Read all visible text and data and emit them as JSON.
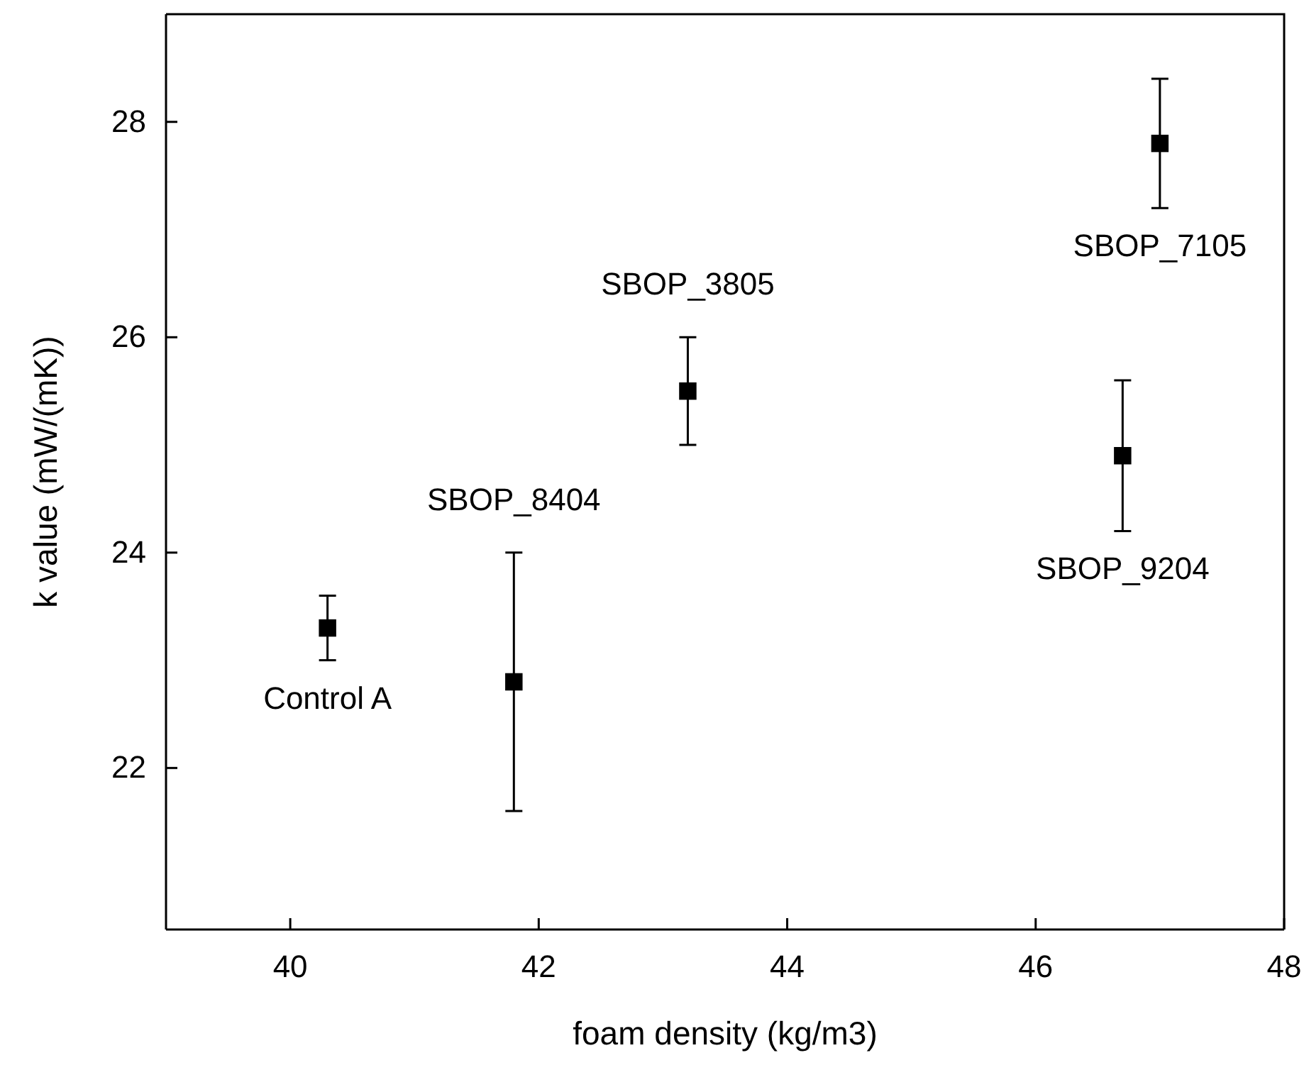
{
  "chart_data": {
    "type": "scatter",
    "xlabel": "foam density (kg/m3)",
    "ylabel": "k value (mW/(mK))",
    "x": [
      40.3,
      41.8,
      43.2,
      46.7,
      47.0
    ],
    "series": [
      {
        "color": "#000000",
        "values": [
          23.3,
          22.8,
          25.5,
          24.9,
          27.8
        ],
        "errors": [
          0.3,
          1.2,
          0.5,
          0.7,
          0.6
        ]
      }
    ],
    "marker": "square",
    "grid": false,
    "xlim": [
      39,
      48
    ],
    "xticks": [
      40,
      42,
      44,
      46,
      48
    ],
    "ylim": [
      20.5,
      29
    ],
    "yticks": [
      22,
      24,
      26,
      28
    ],
    "annotations": [
      {
        "text": "Control A",
        "x": 40.3,
        "y": 23.0
      },
      {
        "text": "SBOP_8404",
        "x": 41.8,
        "y": 24.0
      },
      {
        "text": "SBOP_3805",
        "x": 43.2,
        "y": 26.0
      },
      {
        "text": "SBOP_9204",
        "x": 46.7,
        "y": 24.2
      },
      {
        "text": "SBOP_7105",
        "x": 47.0,
        "y": 27.2
      }
    ]
  }
}
